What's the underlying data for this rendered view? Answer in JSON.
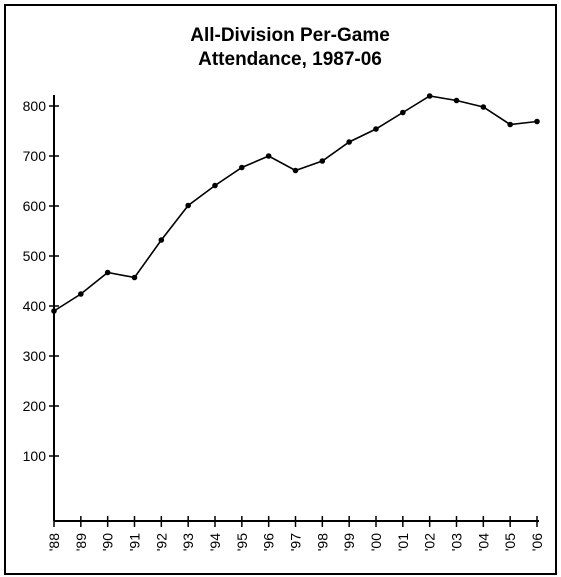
{
  "chart_data": {
    "type": "line",
    "title_lines": [
      "All-Division Per-Game",
      "Attendance, 1987-06"
    ],
    "xlabel": "",
    "ylabel": "",
    "categories": [
      "'88",
      "'89",
      "'90",
      "'91",
      "'92",
      "'93",
      "'94",
      "'95",
      "'96",
      "'97",
      "'98",
      "'99",
      "'00",
      "'01",
      "'02",
      "'03",
      "'04",
      "'05",
      "'06"
    ],
    "values": [
      390,
      424,
      467,
      457,
      532,
      601,
      641,
      677,
      700,
      671,
      690,
      728,
      754,
      787,
      820,
      811,
      798,
      763,
      769
    ],
    "ylim": [
      0,
      850
    ],
    "yticks": [
      100,
      200,
      300,
      400,
      500,
      600,
      700,
      800
    ],
    "grid": false,
    "legend": "none",
    "line_color": "#000000"
  }
}
